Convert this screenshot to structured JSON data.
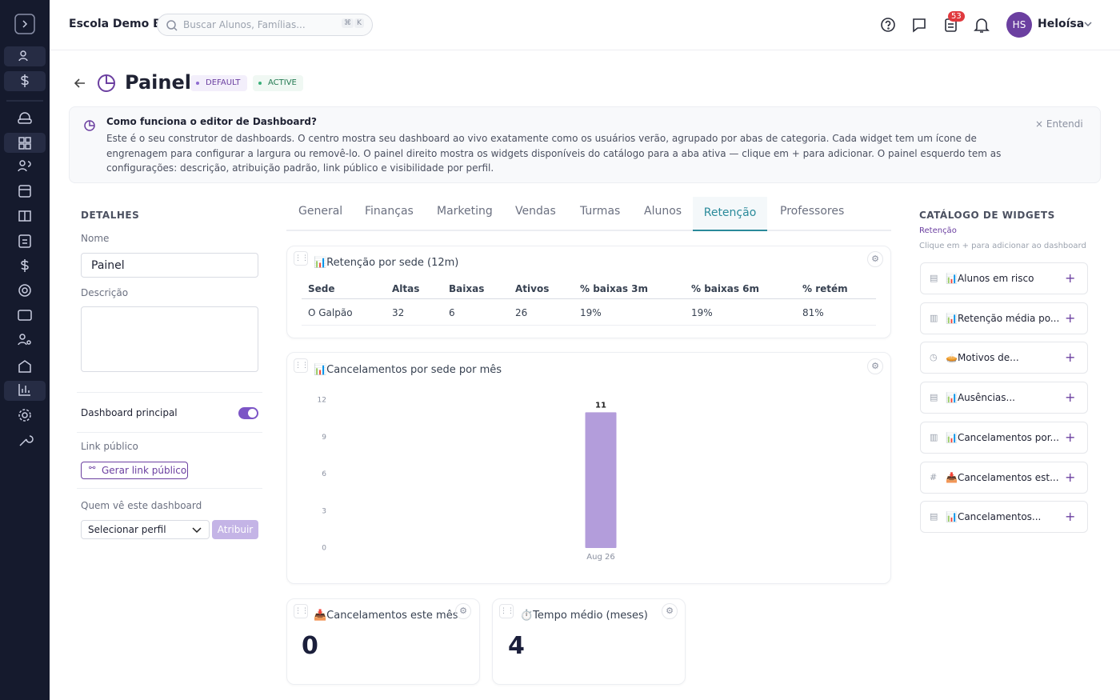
{
  "header": {
    "school": "Escola Demo B",
    "search_placeholder": "Buscar Alunos, Famílias...",
    "shortcut": [
      "⌘",
      "K"
    ],
    "notifications": 53,
    "user_initials": "HS",
    "user_name": "Heloísa"
  },
  "page": {
    "title": "Painel",
    "badges": [
      "DEFAULT",
      "ACTIVE"
    ]
  },
  "info": {
    "title": "Como funciona o editor de Dashboard?",
    "text": "Este é o seu construtor de dashboards. O centro mostra seu dashboard ao vivo exatamente como os usuários verão, agrupado por abas de categoria. Cada widget tem um ícone de engrenagem para configurar a largura ou removê-lo. O painel direito mostra os widgets disponíveis do catálogo para a aba ativa — clique em + para adicionar. O painel esquerdo tem as configurações: descrição, atribuição padrão, link público e visibilidade por perfil.",
    "dismiss": "Entendi"
  },
  "details": {
    "heading": "DETALHES",
    "name_label": "Nome",
    "name_value": "Painel",
    "description_label": "Descrição",
    "main_label": "Dashboard principal",
    "link_label": "Link público",
    "link_button": "Gerar link público",
    "visibility_label": "Quem vê este dashboard",
    "select": "Selecionar perfil",
    "assign": "Atribuir"
  },
  "tabs": [
    "General",
    "Finanças",
    "Marketing",
    "Vendas",
    "Turmas",
    "Alunos",
    "Retenção",
    "Professores"
  ],
  "table_widget": {
    "title": "📊Retenção por sede (12m)",
    "columns": [
      "Sede",
      "Altas",
      "Baixas",
      "Ativos",
      "% baixas 3m",
      "% baixas 6m",
      "% retém"
    ],
    "rows": [
      [
        "O Galpão",
        "32",
        "6",
        "26",
        "19%",
        "19%",
        "81%"
      ]
    ]
  },
  "chart_widget": {
    "title": "📊Cancelamentos por sede por mês",
    "chart": {
      "type": "bar",
      "categories": [
        "Aug 26"
      ],
      "values": [
        11
      ],
      "ylim": [
        0,
        12
      ],
      "yticks": [
        0,
        3,
        6,
        9,
        12
      ],
      "color": "#b39ddb"
    }
  },
  "kpis": [
    {
      "title": "📥Cancelamentos este mês",
      "value": "0"
    },
    {
      "title": "⏱️Tempo médio (meses)",
      "value": "4"
    }
  ],
  "catalog": {
    "heading": "CATÁLOGO DE WIDGETS",
    "tab": "Retenção",
    "hint": "Clique em + para adicionar ao dashboard",
    "items": [
      "📊Alunos em risco",
      "📊Retenção média po...",
      "🥧Motivos de...",
      "📊Ausências...",
      "📊Cancelamentos por...",
      "📥Cancelamentos est...",
      "📊Cancelamentos..."
    ]
  }
}
